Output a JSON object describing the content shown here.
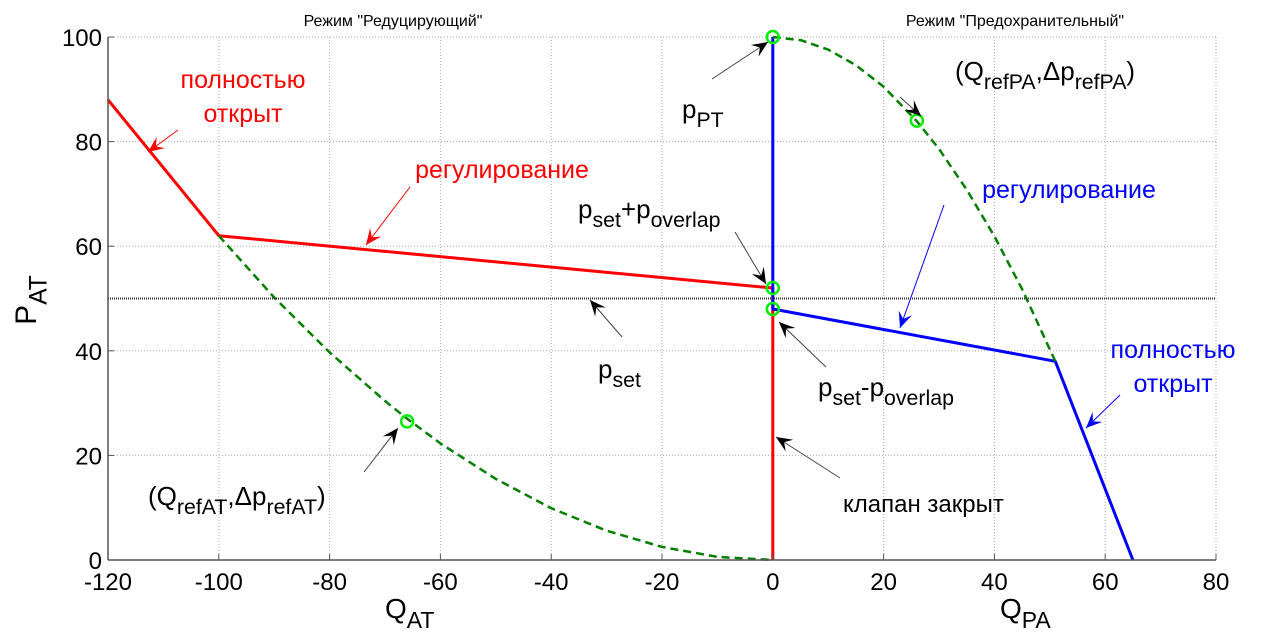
{
  "chart_data": {
    "type": "line",
    "titles": {
      "left": "Режим \"Редуцирующий\"",
      "right": "Режим \"Предохранительный\""
    },
    "xlabel_left": {
      "base": "Q",
      "sub": "AT"
    },
    "xlabel_right": {
      "base": "Q",
      "sub": "PA"
    },
    "ylabel": {
      "base": "P",
      "sub": "AT"
    },
    "xlim": [
      -120,
      80
    ],
    "ylim": [
      0,
      100
    ],
    "xticks": [
      -120,
      -100,
      -80,
      -60,
      -40,
      -20,
      0,
      20,
      40,
      60,
      80
    ],
    "yticks": [
      0,
      20,
      40,
      60,
      80,
      100
    ],
    "grid": true,
    "series": [
      {
        "name": "reducing-valve",
        "color": "#ff0000",
        "style": "solid",
        "points": [
          [
            -120,
            88
          ],
          [
            -100,
            62
          ],
          [
            0,
            52
          ],
          [
            0,
            0
          ]
        ]
      },
      {
        "name": "relief-valve",
        "color": "#0000ff",
        "style": "solid",
        "points": [
          [
            0,
            100
          ],
          [
            0,
            48
          ],
          [
            51,
            38
          ],
          [
            65,
            0
          ]
        ]
      },
      {
        "name": "reference-curve-AT",
        "color": "#007f00",
        "style": "dashed",
        "points": [
          [
            -100,
            62
          ],
          [
            -90,
            50.2
          ],
          [
            -80,
            39.7
          ],
          [
            -70,
            30.4
          ],
          [
            -66,
            27
          ],
          [
            -60,
            22.3
          ],
          [
            -50,
            15.5
          ],
          [
            -40,
            9.9
          ],
          [
            -30,
            5.6
          ],
          [
            -20,
            2.5
          ],
          [
            -10,
            0.6
          ],
          [
            0,
            0
          ]
        ]
      },
      {
        "name": "reference-curve-PA",
        "color": "#007f00",
        "style": "dashed",
        "points": [
          [
            0,
            100
          ],
          [
            5,
            99.4
          ],
          [
            10,
            97.6
          ],
          [
            15,
            94.6
          ],
          [
            20,
            90.5
          ],
          [
            26,
            83.9
          ],
          [
            30,
            78.6
          ],
          [
            35,
            70.8
          ],
          [
            40,
            61.9
          ],
          [
            45,
            51.8
          ],
          [
            51,
            38
          ]
        ]
      },
      {
        "name": "p-set-line",
        "color": "#000000",
        "style": "dotted",
        "points": [
          [
            -120,
            50
          ],
          [
            80,
            50
          ]
        ]
      }
    ],
    "markers": [
      {
        "name": "p-pt-marker",
        "point": [
          0,
          100
        ]
      },
      {
        "name": "ref-pa-marker",
        "point": [
          26,
          84
        ]
      },
      {
        "name": "p-set-plus-overlap-marker",
        "point": [
          0,
          52
        ]
      },
      {
        "name": "p-set-minus-overlap-marker",
        "point": [
          0,
          48
        ]
      },
      {
        "name": "ref-at-marker",
        "point": [
          -66,
          26.5
        ]
      }
    ],
    "marker_color": "#00ee00",
    "annotations": [
      {
        "name": "red-fully-open",
        "color": "#ff0000",
        "lines": [
          [
            {
              "t": "полностью"
            }
          ],
          [
            {
              "t": "открыт"
            }
          ]
        ]
      },
      {
        "name": "red-regulation",
        "color": "#ff0000",
        "lines": [
          [
            {
              "t": "регулирование"
            }
          ]
        ]
      },
      {
        "name": "p-set-plus-overlap",
        "color": "#000000",
        "lines": [
          [
            {
              "t": "p"
            },
            {
              "t": "set",
              "sub": true
            },
            {
              "t": "+p"
            },
            {
              "t": "overlap",
              "sub": true
            }
          ]
        ]
      },
      {
        "name": "p-set",
        "color": "#000000",
        "lines": [
          [
            {
              "t": "p"
            },
            {
              "t": "set",
              "sub": true
            }
          ]
        ]
      },
      {
        "name": "p-pt",
        "color": "#000000",
        "lines": [
          [
            {
              "t": "p"
            },
            {
              "t": "PT",
              "sub": true
            }
          ]
        ]
      },
      {
        "name": "ref-pa",
        "color": "#000000",
        "lines": [
          [
            {
              "t": "(Q"
            },
            {
              "t": "refPA",
              "sub": true
            },
            {
              "t": ",Δp"
            },
            {
              "t": "refPA",
              "sub": true
            },
            {
              "t": ")"
            }
          ]
        ]
      },
      {
        "name": "blue-regulation",
        "color": "#0000ff",
        "lines": [
          [
            {
              "t": "регулирование"
            }
          ]
        ]
      },
      {
        "name": "p-set-minus-overlap",
        "color": "#000000",
        "lines": [
          [
            {
              "t": "p"
            },
            {
              "t": "set",
              "sub": true
            },
            {
              "t": "-p"
            },
            {
              "t": "overlap",
              "sub": true
            }
          ]
        ]
      },
      {
        "name": "blue-fully-open",
        "color": "#0000ff",
        "lines": [
          [
            {
              "t": "полностью"
            }
          ],
          [
            {
              "t": "открыт"
            }
          ]
        ]
      },
      {
        "name": "ref-at",
        "color": "#000000",
        "lines": [
          [
            {
              "t": "(Q"
            },
            {
              "t": "refAT",
              "sub": true
            },
            {
              "t": ",Δp"
            },
            {
              "t": "refAT",
              "sub": true
            },
            {
              "t": ")"
            }
          ]
        ]
      },
      {
        "name": "valve-closed",
        "color": "#000000",
        "lines": [
          [
            {
              "t": "клапан закрыт"
            }
          ]
        ]
      }
    ]
  }
}
